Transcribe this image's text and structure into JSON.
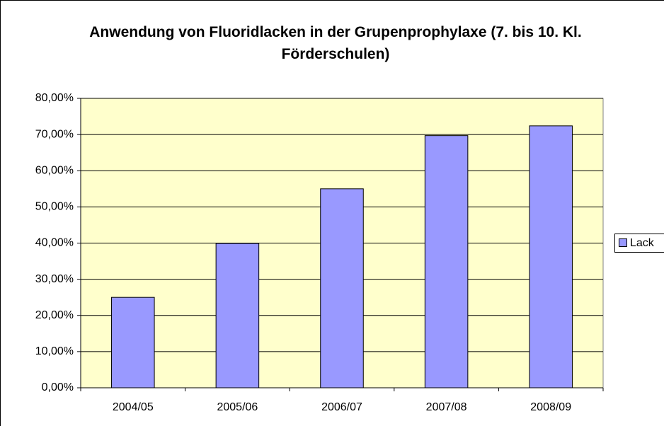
{
  "chart_data": {
    "type": "bar",
    "title": "Anwendung von Fluoridlacken in der Grupenprophylaxe (7. bis 10. Kl. Förderschulen)",
    "categories": [
      "2004/05",
      "2005/06",
      "2006/07",
      "2007/08",
      "2008/09"
    ],
    "series": [
      {
        "name": "Lack",
        "color": "#9999ff",
        "values": [
          25.0,
          39.9,
          55.0,
          69.7,
          72.4
        ]
      }
    ],
    "ylim": [
      0,
      80
    ],
    "yticks": [
      {
        "value": 0,
        "label": "0,00%"
      },
      {
        "value": 10,
        "label": "10,00%"
      },
      {
        "value": 20,
        "label": "20,00%"
      },
      {
        "value": 30,
        "label": "30,00%"
      },
      {
        "value": 40,
        "label": "40,00%"
      },
      {
        "value": 50,
        "label": "50,00%"
      },
      {
        "value": 60,
        "label": "60,00%"
      },
      {
        "value": 70,
        "label": "70,00%"
      },
      {
        "value": 80,
        "label": "80,00%"
      }
    ],
    "grid": true,
    "plot_background": "#ffffcc",
    "legend": "right"
  }
}
